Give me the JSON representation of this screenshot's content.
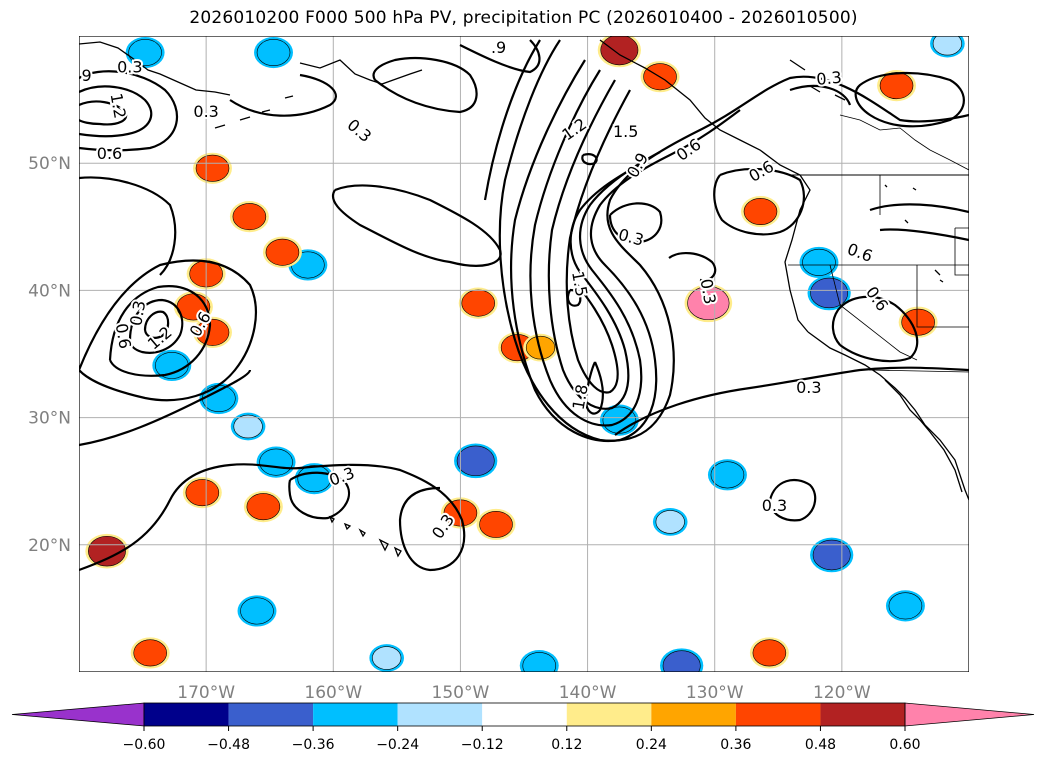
{
  "chart_data": {
    "type": "map_contour",
    "title": "2026010200 F000 500 hPa PV, precipitation PC (2026010400 - 2026010500)",
    "map": {
      "lon_range": [
        -180,
        -110
      ],
      "lat_range": [
        10,
        60
      ],
      "lon_ticks": [
        -170,
        -160,
        -150,
        -140,
        -130,
        -120
      ],
      "lon_tick_labels": [
        "170°W",
        "160°W",
        "150°W",
        "140°W",
        "130°W",
        "120°W"
      ],
      "lat_ticks": [
        20,
        30,
        40,
        50
      ],
      "lat_tick_labels": [
        "20°N",
        "30°N",
        "40°N",
        "50°N"
      ],
      "grid": true
    },
    "colorbar": {
      "orientation": "horizontal",
      "extend": "both",
      "boundaries": [
        -0.6,
        -0.48,
        -0.36,
        -0.24,
        -0.12,
        0.12,
        0.24,
        0.36,
        0.48,
        0.6
      ],
      "tick_labels": [
        "−0.60",
        "−0.48",
        "−0.36",
        "−0.24",
        "−0.12",
        "0.12",
        "0.24",
        "0.36",
        "0.48",
        "0.60"
      ],
      "colors": [
        "#9932cc",
        "#00008b",
        "#3a5fcd",
        "#00bfff",
        "#b0e2ff",
        "#ffffff",
        "#ffec8b",
        "#ffa500",
        "#ff4500",
        "#b22222",
        "#ff82ab"
      ]
    },
    "contours": {
      "field": "500 hPa PV",
      "levels": [
        0.3,
        0.6,
        0.9,
        1.2,
        1.5,
        1.8
      ],
      "labels": [
        {
          "text": "0.3",
          "lon": -176,
          "lat": 57.5
        },
        {
          "text": "0.3",
          "lon": -170,
          "lat": 54
        },
        {
          "text": "0.3",
          "lon": -158,
          "lat": 52.5,
          "rot": 40
        },
        {
          "text": "9",
          "lon": -179.4,
          "lat": 56.8
        },
        {
          "text": "1.2",
          "lon": -177,
          "lat": 54.5,
          "rot": 80
        },
        {
          "text": "0.6",
          "lon": -177.6,
          "lat": 50.7
        },
        {
          "text": ".9",
          "lon": -147,
          "lat": 59
        },
        {
          "text": "1.2",
          "lon": -141,
          "lat": 52.6,
          "rot": -35
        },
        {
          "text": "1.5",
          "lon": -137,
          "lat": 52.4
        },
        {
          "text": "0.9",
          "lon": -136,
          "lat": 49.8,
          "rot": -60
        },
        {
          "text": "0.6",
          "lon": -132,
          "lat": 51,
          "rot": -35
        },
        {
          "text": "0.3",
          "lon": -136.6,
          "lat": 44.1,
          "rot": 15
        },
        {
          "text": "0.6",
          "lon": -126.3,
          "lat": 49.3,
          "rot": -30
        },
        {
          "text": "0.3",
          "lon": -121,
          "lat": 56.6,
          "rot": -5
        },
        {
          "text": "0.6",
          "lon": -118.6,
          "lat": 42.9,
          "rot": 20
        },
        {
          "text": "0.6",
          "lon": -117.3,
          "lat": 39.3,
          "rot": 55
        },
        {
          "text": "1.5",
          "lon": -140.7,
          "lat": 40.5,
          "rot": 80
        },
        {
          "text": "1.8",
          "lon": -140.5,
          "lat": 31.6,
          "rot": -80
        },
        {
          "text": "0.3",
          "lon": -130.6,
          "lat": 39.9,
          "rot": 80
        },
        {
          "text": "0.3",
          "lon": -122.6,
          "lat": 32.3
        },
        {
          "text": "0.3",
          "lon": -175.3,
          "lat": 38.2,
          "rot": -80
        },
        {
          "text": "0.6",
          "lon": -176.6,
          "lat": 36.4,
          "rot": 80
        },
        {
          "text": "1.2",
          "lon": -173.6,
          "lat": 36.2,
          "rot": -40
        },
        {
          "text": "0.6",
          "lon": -170.4,
          "lat": 37.3,
          "rot": -60
        },
        {
          "text": "0.3",
          "lon": -159.3,
          "lat": 25.3,
          "rot": -20
        },
        {
          "text": "0.3",
          "lon": -151.3,
          "lat": 21.4,
          "rot": -55
        },
        {
          "text": "0.3",
          "lon": -125.3,
          "lat": 23.0
        }
      ]
    },
    "shading": {
      "field": "precipitation PC",
      "blobs": [
        {
          "lon": -174.8,
          "lat": 58.7,
          "value": -0.36
        },
        {
          "lon": -172.7,
          "lat": 34.1,
          "value": -0.36
        },
        {
          "lon": -169,
          "lat": 31.5,
          "value": -0.36
        },
        {
          "lon": -166.7,
          "lat": 29.3,
          "value": -0.24
        },
        {
          "lon": -164.5,
          "lat": 26.5,
          "value": -0.36
        },
        {
          "lon": -162,
          "lat": 42,
          "value": -0.36
        },
        {
          "lon": -161.5,
          "lat": 25.2,
          "value": -0.36
        },
        {
          "lon": -166,
          "lat": 14.8,
          "value": -0.36
        },
        {
          "lon": -148.8,
          "lat": 26.6,
          "value": -0.48
        },
        {
          "lon": -137.5,
          "lat": 29.8,
          "value": -0.36
        },
        {
          "lon": -133.5,
          "lat": 21.8,
          "value": -0.24
        },
        {
          "lon": -129,
          "lat": 25.5,
          "value": -0.36
        },
        {
          "lon": -120.8,
          "lat": 19.2,
          "value": -0.48
        },
        {
          "lon": -115,
          "lat": 15.2,
          "value": -0.36
        },
        {
          "lon": -121,
          "lat": 39.8,
          "value": -0.48
        },
        {
          "lon": -121.8,
          "lat": 42.2,
          "value": -0.36
        },
        {
          "lon": -132.6,
          "lat": 10.5,
          "value": -0.48
        },
        {
          "lon": -143.8,
          "lat": 10.5,
          "value": -0.36
        },
        {
          "lon": -155.8,
          "lat": 11.1,
          "value": -0.24
        },
        {
          "lon": -111.7,
          "lat": 59.4,
          "value": -0.24
        },
        {
          "lon": -164.7,
          "lat": 58.7,
          "value": -0.36
        },
        {
          "lon": -177.8,
          "lat": 19.5,
          "value": 0.48
        },
        {
          "lon": -174.4,
          "lat": 11.5,
          "value": 0.36
        },
        {
          "lon": -169.5,
          "lat": 49.6,
          "value": 0.36
        },
        {
          "lon": -166.6,
          "lat": 45.8,
          "value": 0.36
        },
        {
          "lon": -164,
          "lat": 43.0,
          "value": 0.36
        },
        {
          "lon": -170,
          "lat": 41.3,
          "value": 0.36
        },
        {
          "lon": -171,
          "lat": 38.7,
          "value": 0.36
        },
        {
          "lon": -169.5,
          "lat": 36.7,
          "value": 0.36
        },
        {
          "lon": -148.6,
          "lat": 39.0,
          "value": 0.36
        },
        {
          "lon": -145.5,
          "lat": 35.5,
          "value": 0.36
        },
        {
          "lon": -130.5,
          "lat": 39.0,
          "value": 0.6
        },
        {
          "lon": -126.4,
          "lat": 46.2,
          "value": 0.36
        },
        {
          "lon": -114,
          "lat": 37.5,
          "value": 0.36
        },
        {
          "lon": -115.7,
          "lat": 56.1,
          "value": 0.36
        },
        {
          "lon": -137.5,
          "lat": 58.9,
          "value": 0.48
        },
        {
          "lon": -134.3,
          "lat": 56.8,
          "value": 0.36
        },
        {
          "lon": -165.5,
          "lat": 23.0,
          "value": 0.36
        },
        {
          "lon": -150,
          "lat": 22.5,
          "value": 0.36
        },
        {
          "lon": -147.2,
          "lat": 21.6,
          "value": 0.36
        },
        {
          "lon": -170.3,
          "lat": 24.1,
          "value": 0.36
        },
        {
          "lon": -125.7,
          "lat": 11.5,
          "value": 0.36
        },
        {
          "lon": -143.7,
          "lat": 35.5,
          "value": 0.24
        }
      ]
    }
  }
}
